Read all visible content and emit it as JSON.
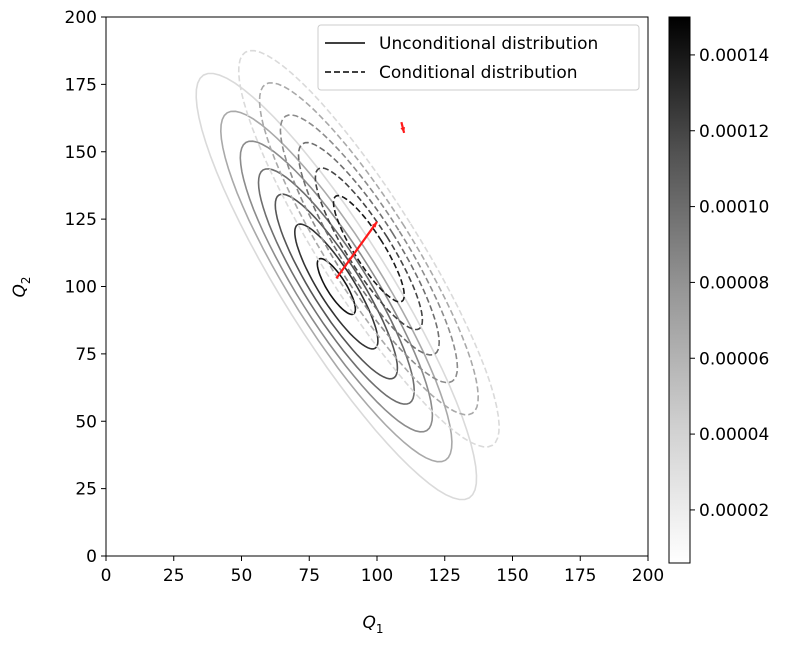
{
  "chart_data": {
    "type": "contour",
    "title": "",
    "xlabel": "Q",
    "xlabel_sub": "1",
    "ylabel": "Q",
    "ylabel_sub": "2",
    "xlim": [
      0,
      200
    ],
    "ylim": [
      0,
      200
    ],
    "xticks": [
      0,
      25,
      50,
      75,
      100,
      125,
      150,
      175,
      200
    ],
    "yticks": [
      0,
      25,
      50,
      75,
      100,
      125,
      150,
      175,
      200
    ],
    "legend": {
      "placement": "top-right",
      "entries": [
        {
          "label": "Unconditional distribution",
          "style": "solid"
        },
        {
          "label": "Conditional distribution",
          "style": "dashed"
        }
      ]
    },
    "colorbar": {
      "ticks": [
        "0.00002",
        "0.00004",
        "0.00006",
        "0.00008",
        "0.00010",
        "0.00012",
        "0.00014"
      ],
      "tick_values": [
        2e-05,
        4e-05,
        6e-05,
        8e-05,
        0.0001,
        0.00012,
        0.00014
      ],
      "range": [
        6e-06,
        0.00015
      ],
      "colormap": "Greys"
    },
    "series": [
      {
        "name": "Unconditional distribution",
        "style": "solid",
        "center": [
          85,
          100
        ],
        "contours": [
          {
            "level": 2e-05,
            "color": "#dadada",
            "rx": 19.5,
            "ry": 92.5,
            "angle": 32
          },
          {
            "level": 4e-05,
            "color": "#a9a9a9",
            "rx": 16.5,
            "ry": 76,
            "angle": 32
          },
          {
            "level": 6e-05,
            "color": "#8c8c8c",
            "rx": 14,
            "ry": 63,
            "angle": 32
          },
          {
            "level": 8e-05,
            "color": "#6f6f6f",
            "rx": 11.5,
            "ry": 51,
            "angle": 32
          },
          {
            "level": 0.0001,
            "color": "#555555",
            "rx": 9,
            "ry": 40,
            "angle": 32
          },
          {
            "level": 0.00012,
            "color": "#333333",
            "rx": 6.5,
            "ry": 27,
            "angle": 32
          },
          {
            "level": 0.00014,
            "color": "#151515",
            "rx": 3.5,
            "ry": 12,
            "angle": 32
          }
        ]
      },
      {
        "name": "Conditional distribution",
        "style": "dashed",
        "center": [
          97,
          114
        ],
        "contours": [
          {
            "level": 2e-05,
            "color": "#dadada",
            "rx": 18,
            "ry": 86,
            "angle": 32
          },
          {
            "level": 4e-05,
            "color": "#a9a9a9",
            "rx": 15.5,
            "ry": 72,
            "angle": 32
          },
          {
            "level": 6e-05,
            "color": "#8c8c8c",
            "rx": 13,
            "ry": 58,
            "angle": 32
          },
          {
            "level": 8e-05,
            "color": "#6f6f6f",
            "rx": 10.5,
            "ry": 46,
            "angle": 32
          },
          {
            "level": 0.0001,
            "color": "#444444",
            "rx": 8,
            "ry": 35,
            "angle": 32
          },
          {
            "level": 0.00012,
            "color": "#1a1a1a",
            "rx": 5.5,
            "ry": 23,
            "angle": 32
          }
        ]
      }
    ],
    "arrows": [
      {
        "from": [
          85,
          103
        ],
        "to": [
          100,
          124
        ],
        "color": "#ff1a1a"
      },
      {
        "from": [
          109,
          161
        ],
        "to": [
          110,
          157
        ],
        "color": "#ff1a1a"
      }
    ]
  }
}
